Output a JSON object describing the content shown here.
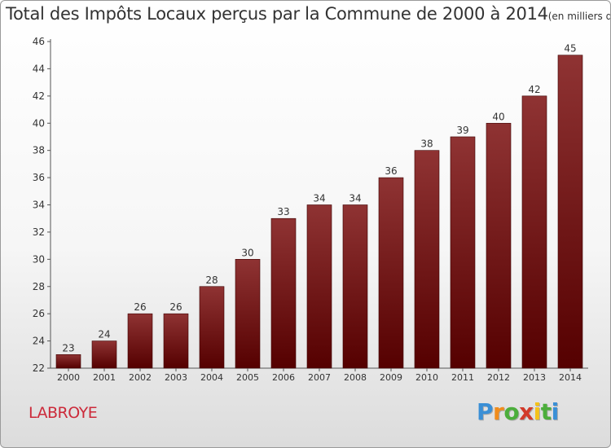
{
  "chart_data": {
    "type": "bar",
    "title": "Total des Impôts Locaux perçus par la Commune de 2000 à 2014",
    "title_unit": "(en milliers d'€)",
    "xlabel": "",
    "ylabel": "",
    "categories": [
      "2000",
      "2001",
      "2002",
      "2003",
      "2004",
      "2005",
      "2006",
      "2007",
      "2008",
      "2009",
      "2010",
      "2011",
      "2012",
      "2013",
      "2014"
    ],
    "values": [
      23,
      24,
      26,
      26,
      28,
      30,
      33,
      34,
      34,
      36,
      38,
      39,
      40,
      42,
      45
    ],
    "ylim": [
      22,
      46
    ],
    "yticks": [
      22,
      24,
      26,
      28,
      30,
      32,
      34,
      36,
      38,
      40,
      42,
      44,
      46
    ],
    "grid": false,
    "legend": "none",
    "data_labels": true,
    "bar_color_top": "#8f3333",
    "bar_color_bottom": "#550000"
  },
  "commune": "LABROYE",
  "logo": {
    "letters": [
      "P",
      "r",
      "o",
      "x",
      "i",
      "t",
      "i"
    ],
    "colors": [
      "#3a8fd6",
      "#f08c1c",
      "#4cae3c",
      "#d23a2a",
      "#f4c21a",
      "#4cae3c",
      "#3a8fd6"
    ]
  }
}
